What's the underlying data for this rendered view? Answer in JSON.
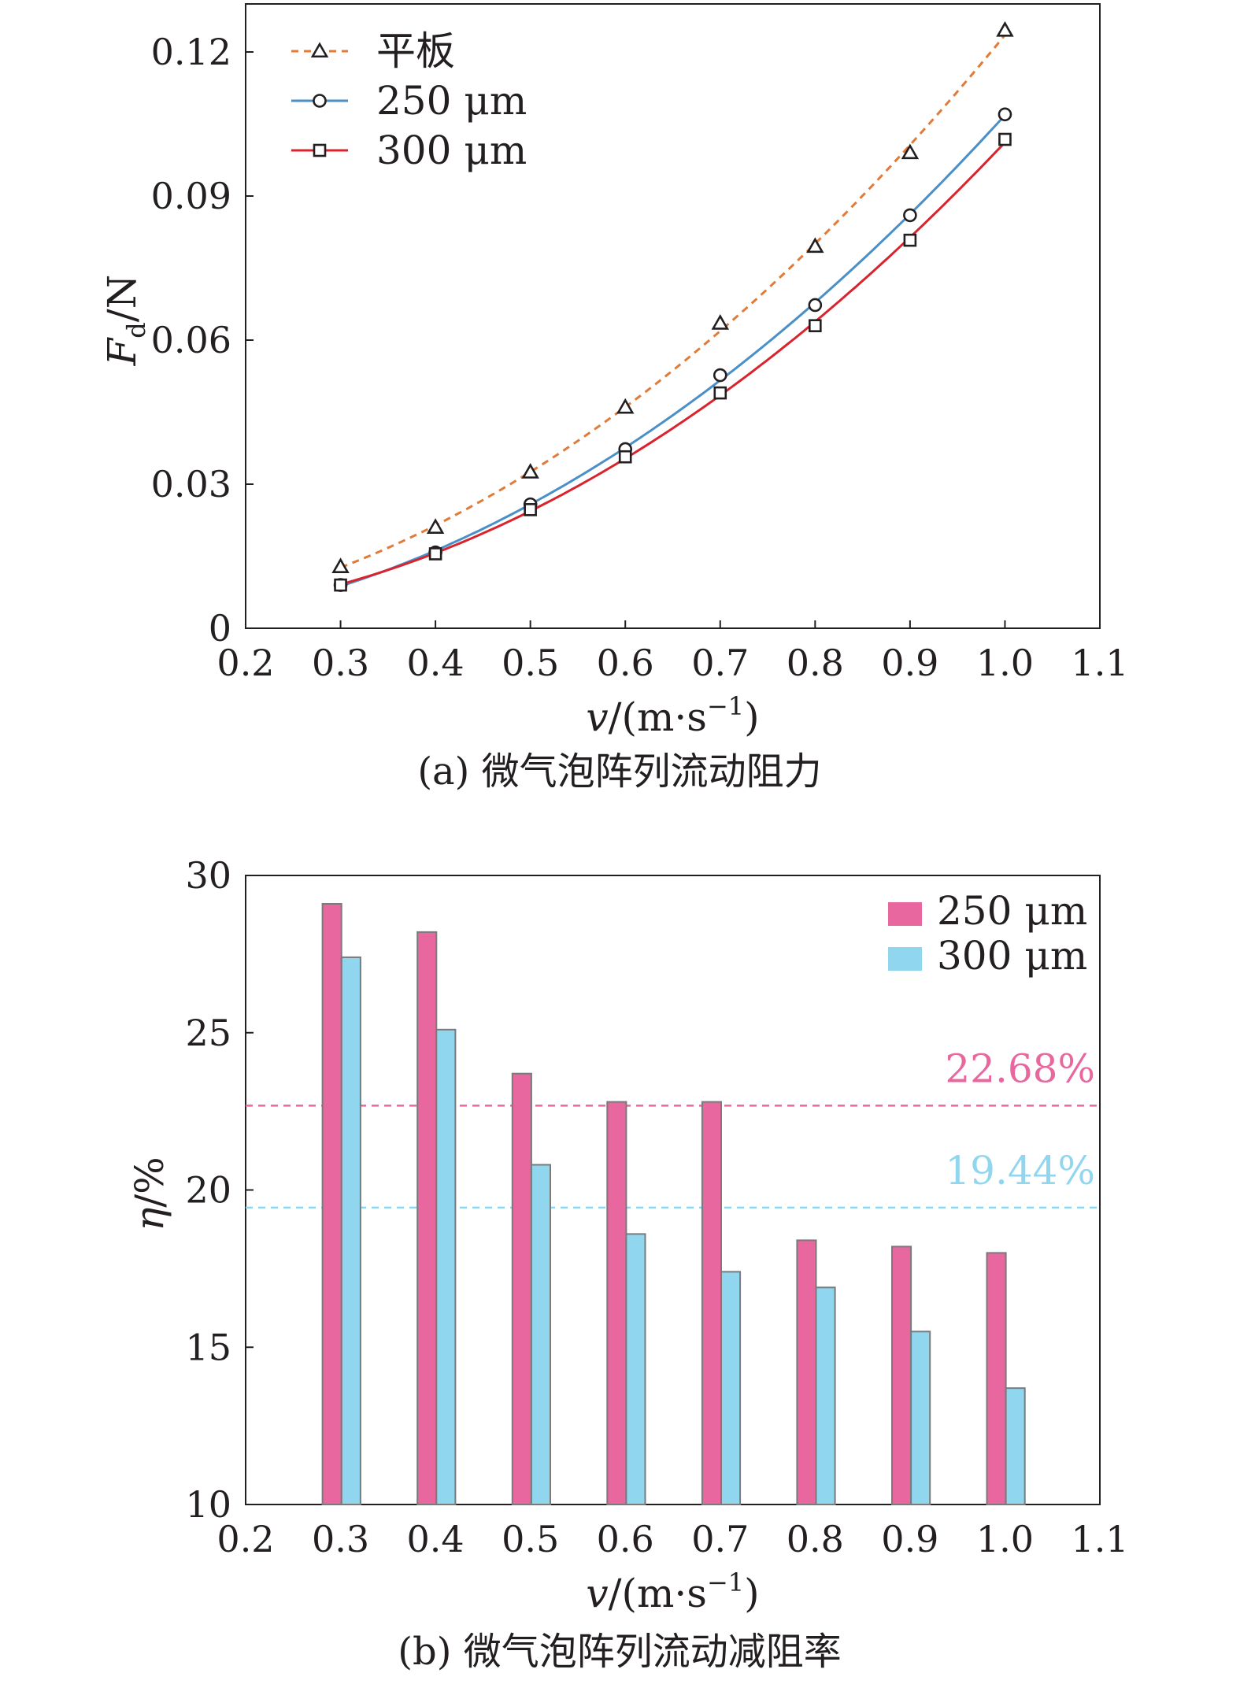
{
  "chart_data": [
    {
      "type": "line",
      "title": "",
      "caption": "(a) 微气泡阵列流动阻力",
      "xlabel": {
        "italic": "v",
        "rest": "/(m·s",
        "sup": "−1",
        "close": ")"
      },
      "ylabel": {
        "italic": "F",
        "sub": "d",
        "rest": "/N"
      },
      "xlim": [
        0.2,
        1.1
      ],
      "ylim": [
        0,
        0.13
      ],
      "xticks": [
        0.2,
        0.3,
        0.4,
        0.5,
        0.6,
        0.7,
        0.8,
        0.9,
        1.0,
        1.1
      ],
      "xtick_labels": [
        "0.2",
        "0.3",
        "0.4",
        "0.5",
        "0.6",
        "0.7",
        "0.8",
        "0.9",
        "1.0",
        "1.1"
      ],
      "yticks": [
        0,
        0.03,
        0.06,
        0.09,
        0.12
      ],
      "ytick_labels": [
        "0",
        "0.03",
        "0.06",
        "0.09",
        "0.12"
      ],
      "grid": false,
      "legend_position": "top-left",
      "x": [
        0.3,
        0.4,
        0.5,
        0.6,
        0.7,
        0.8,
        0.9,
        1.0
      ],
      "series": [
        {
          "name": "平板",
          "marker": "triangle",
          "line_style": "dashed",
          "color": "#e07b39",
          "values": [
            0.0128,
            0.021,
            0.0325,
            0.046,
            0.0635,
            0.0795,
            0.099,
            0.1245
          ]
        },
        {
          "name": "250 μm",
          "marker": "circle",
          "line_style": "solid",
          "color": "#4a90c8",
          "values": [
            0.009,
            0.0158,
            0.0258,
            0.0373,
            0.0527,
            0.0673,
            0.086,
            0.107
          ]
        },
        {
          "name": "300 μm",
          "marker": "square",
          "line_style": "solid",
          "color": "#d9232d",
          "values": [
            0.009,
            0.0155,
            0.0247,
            0.0357,
            0.049,
            0.063,
            0.0808,
            0.1018
          ]
        }
      ]
    },
    {
      "type": "bar",
      "title": "",
      "caption": "(b) 微气泡阵列流动减阻率",
      "xlabel": {
        "italic": "v",
        "rest": "/(m·s",
        "sup": "−1",
        "close": ")"
      },
      "ylabel": {
        "italic": "η",
        "rest": "/%"
      },
      "xlim": [
        0.2,
        1.1
      ],
      "ylim": [
        10,
        30
      ],
      "xticks": [
        0.2,
        0.3,
        0.4,
        0.5,
        0.6,
        0.7,
        0.8,
        0.9,
        1.0,
        1.1
      ],
      "xtick_labels": [
        "0.2",
        "0.3",
        "0.4",
        "0.5",
        "0.6",
        "0.7",
        "0.8",
        "0.9",
        "1.0",
        "1.1"
      ],
      "yticks": [
        10,
        15,
        20,
        25,
        30
      ],
      "ytick_labels": [
        "10",
        "15",
        "20",
        "25",
        "30"
      ],
      "grid": false,
      "legend_position": "top-right",
      "categories": [
        0.3,
        0.4,
        0.5,
        0.6,
        0.7,
        0.8,
        0.9,
        1.0
      ],
      "series": [
        {
          "name": "250 μm",
          "color": "#e8679e",
          "values": [
            29.1,
            28.2,
            23.7,
            22.8,
            22.8,
            18.4,
            18.2,
            18.0
          ]
        },
        {
          "name": "300 μm",
          "color": "#8fd6ee",
          "values": [
            27.4,
            25.1,
            20.8,
            18.6,
            17.4,
            16.9,
            15.5,
            13.7
          ]
        }
      ],
      "reference_lines": [
        {
          "value": 22.68,
          "label": "22.68%",
          "color": "#e8679e"
        },
        {
          "value": 19.44,
          "label": "19.44%",
          "color": "#8fd6ee"
        }
      ]
    }
  ]
}
